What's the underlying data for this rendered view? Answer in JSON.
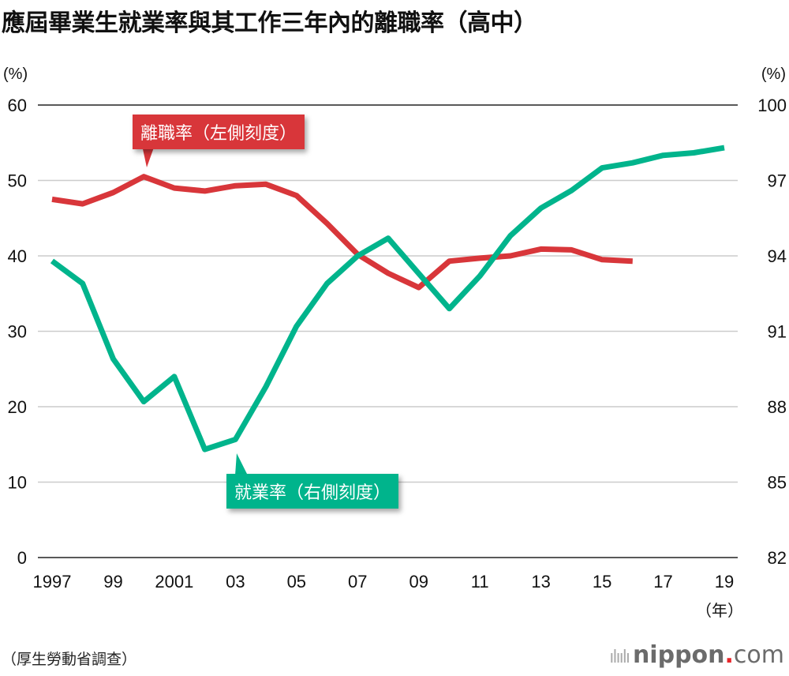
{
  "title": "應屆畢業生就業率與其工作三年內的離職率（高中）",
  "source": "（厚生勞動省調查）",
  "logo": {
    "main": "nippon",
    "dot": ".",
    "suffix": "com"
  },
  "colors": {
    "red": "#d8363a",
    "green": "#00b48c",
    "grid": "#cccccc"
  },
  "chart_data": {
    "type": "line",
    "title": "應屆畢業生就業率與其工作三年內的離職率（高中）",
    "x": [
      1997,
      1998,
      1999,
      2000,
      2001,
      2002,
      2003,
      2004,
      2005,
      2006,
      2007,
      2008,
      2009,
      2010,
      2011,
      2012,
      2013,
      2014,
      2015,
      2016,
      2017,
      2018,
      2019
    ],
    "xtick_labels": [
      "1997",
      "99",
      "2001",
      "03",
      "05",
      "07",
      "09",
      "11",
      "13",
      "15",
      "17",
      "19"
    ],
    "xtick_years": [
      1997,
      1999,
      2001,
      2003,
      2005,
      2007,
      2009,
      2011,
      2013,
      2015,
      2017,
      2019
    ],
    "xlabel": "（年）",
    "left_axis": {
      "label": "(%)",
      "ylim": [
        0,
        60
      ],
      "ticks": [
        "0",
        "10",
        "20",
        "30",
        "40",
        "50",
        "60"
      ]
    },
    "right_axis": {
      "label": "(%)",
      "ylim": [
        82,
        100
      ],
      "ticks": [
        "82",
        "85",
        "88",
        "91",
        "94",
        "97",
        "100"
      ]
    },
    "series": [
      {
        "name": "離職率（左側刻度）",
        "axis": "left",
        "color": "#d8363a",
        "values": [
          47.5,
          46.9,
          48.4,
          50.5,
          49.0,
          48.6,
          49.3,
          49.5,
          48.0,
          44.3,
          40.2,
          37.7,
          35.8,
          39.3,
          39.7,
          40.0,
          40.9,
          40.8,
          39.5,
          39.3,
          null,
          null,
          null
        ]
      },
      {
        "name": "就業率（右側刻度）",
        "axis": "right",
        "color": "#00b48c",
        "values": [
          93.8,
          92.9,
          89.9,
          88.2,
          89.2,
          86.3,
          86.7,
          88.8,
          91.2,
          92.9,
          94.0,
          94.7,
          93.3,
          91.9,
          93.2,
          94.8,
          95.9,
          96.6,
          97.5,
          97.7,
          98.0,
          98.1,
          98.3
        ]
      }
    ],
    "grid": true
  }
}
